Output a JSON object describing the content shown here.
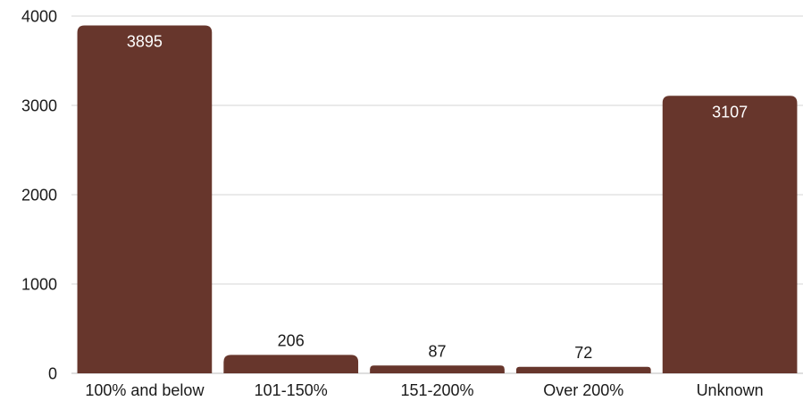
{
  "chart_data": {
    "type": "bar",
    "title": "",
    "xlabel": "",
    "ylabel": "",
    "categories": [
      "100% and below",
      "101-150%",
      "151-200%",
      "Over 200%",
      "Unknown"
    ],
    "values": [
      3895,
      206,
      87,
      72,
      3107
    ],
    "data_labels": [
      "3895",
      "206",
      "87",
      "72",
      "3107"
    ],
    "yticks": [
      0,
      1000,
      2000,
      3000,
      4000
    ],
    "ytick_labels": [
      "0",
      "1000",
      "2000",
      "3000",
      "4000"
    ],
    "ylim": [
      0,
      4000
    ],
    "grid": true,
    "legend": "none",
    "colors": {
      "bar": "#67362C",
      "label_inside": "#ffffff",
      "label_outside": "#1a1a1a"
    }
  }
}
